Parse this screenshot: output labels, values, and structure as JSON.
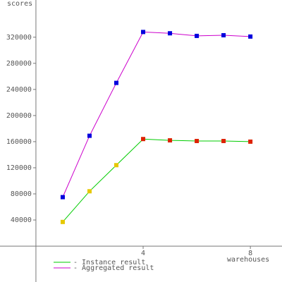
{
  "chart_data": {
    "type": "line",
    "y_label": "scores",
    "x_label": "warehouses",
    "x": [
      1,
      2,
      3,
      4,
      5,
      6,
      7,
      8
    ],
    "series": [
      {
        "name": "- Instance result",
        "color": "#00cc00",
        "point_colors": [
          "#e6c800",
          "#e6c800",
          "#e6c800",
          "#dd2200",
          "#dd2200",
          "#dd2200",
          "#dd2200",
          "#dd2200"
        ],
        "values": [
          37000,
          84000,
          124000,
          164000,
          162000,
          161000,
          161000,
          160000
        ]
      },
      {
        "name": "- Aggregated result",
        "color": "#cc00cc",
        "point_colors": [
          "#0000dd",
          "#0000dd",
          "#0000dd",
          "#0000dd",
          "#0000dd",
          "#0000dd",
          "#0000dd",
          "#0000dd"
        ],
        "values": [
          75000,
          169000,
          250000,
          328000,
          326000,
          322000,
          323000,
          321000
        ]
      }
    ],
    "xlim": [
      -1.34,
      9.18
    ],
    "ylim": [
      -55000,
      377000
    ],
    "xticks": [
      4,
      8
    ],
    "yticks": [
      40000,
      80000,
      120000,
      160000,
      200000,
      240000,
      280000,
      320000
    ]
  }
}
